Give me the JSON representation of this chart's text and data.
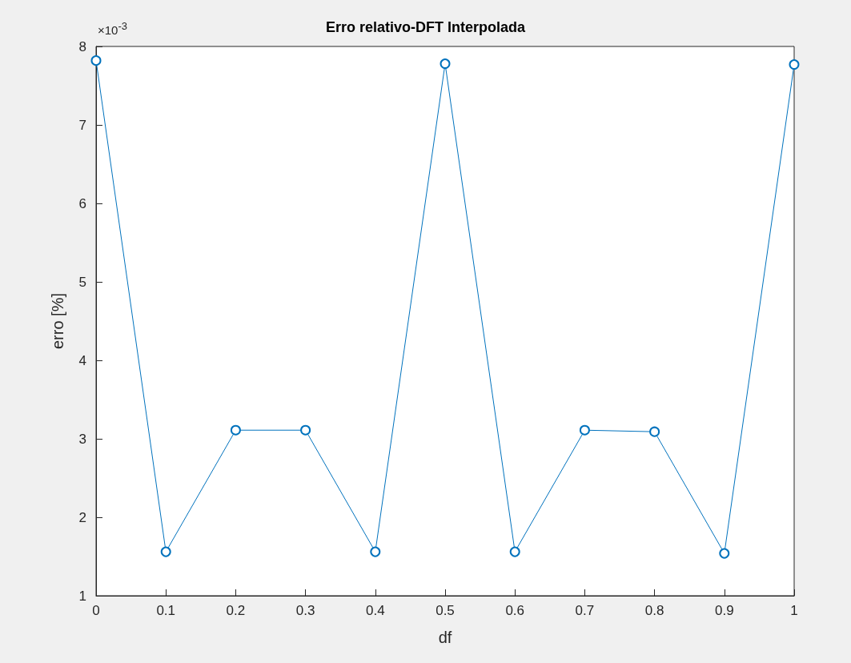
{
  "chart_data": {
    "type": "line",
    "title": "Erro relativo-DFT Interpolada",
    "xlabel": "df",
    "ylabel": "erro [%]",
    "annotations": [
      "×10$^{-3}$"
    ],
    "x": [
      0,
      0.1,
      0.2,
      0.3,
      0.4,
      0.5,
      0.6,
      0.7,
      0.8,
      0.9,
      1
    ],
    "series": [
      {
        "color": "#0072bd",
        "values": [
          7.82,
          1.56,
          3.11,
          3.11,
          1.56,
          7.78,
          1.56,
          3.11,
          3.09,
          1.54,
          7.77
        ]
      }
    ],
    "xlim": [
      0,
      1
    ],
    "xticks": [
      0,
      0.1,
      0.2,
      0.3,
      0.4,
      0.5,
      0.6,
      0.7,
      0.8,
      0.9,
      1
    ],
    "ylim": [
      1,
      8
    ],
    "yticks": [
      1,
      2,
      3,
      4,
      5,
      6,
      7,
      8
    ],
    "grid": false,
    "marker": "circle",
    "line_style": "solid"
  }
}
